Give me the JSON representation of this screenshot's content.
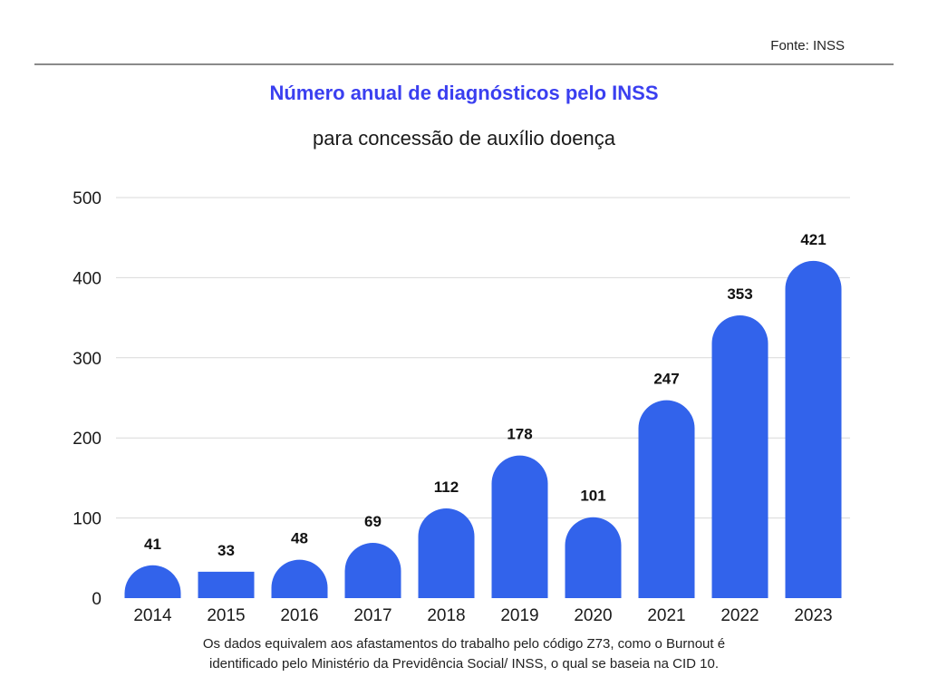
{
  "source": "Fonte: INSS",
  "footnote": {
    "line1": "Os dados equivalem aos afastamentos do trabalho pelo código Z73, como o Burnout é",
    "line2": "identificado pelo Ministério da Previdência Social/ INSS, o qual se baseia na CID 10."
  },
  "chart_data": {
    "type": "bar",
    "title": "Número anual de diagnósticos pelo INSS",
    "subtitle": "para concessão de auxílio doença",
    "categories": [
      "2014",
      "2015",
      "2016",
      "2017",
      "2018",
      "2019",
      "2020",
      "2021",
      "2022",
      "2023"
    ],
    "values": [
      41,
      33,
      48,
      69,
      112,
      178,
      101,
      247,
      353,
      421
    ],
    "ylim": [
      0,
      500
    ],
    "yticks": [
      0,
      100,
      200,
      300,
      400,
      500
    ],
    "grid": true,
    "bar_color": "#3263eb",
    "title_color": "#3a3ff0"
  }
}
